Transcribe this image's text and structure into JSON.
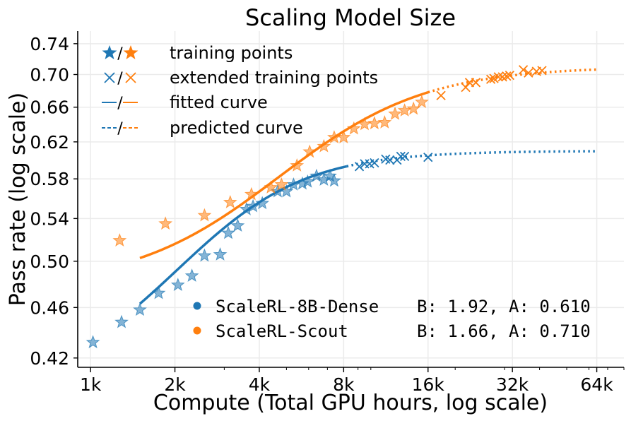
{
  "chart_data": {
    "type": "scatter",
    "title": "Scaling Model Size",
    "xlabel": "Compute (Total GPU hours, log scale)",
    "ylabel": "Pass rate (log scale)",
    "x_scale": "log",
    "y_scale": "log",
    "xlim": [
      900,
      80000
    ],
    "ylim": [
      0.413,
      0.757
    ],
    "xticks": [
      1000,
      2000,
      4000,
      8000,
      16000,
      32000,
      64000
    ],
    "xtick_labels": [
      "1k",
      "2k",
      "4k",
      "8k",
      "16k",
      "32k",
      "64k"
    ],
    "yticks": [
      0.42,
      0.46,
      0.5,
      0.54,
      0.58,
      0.62,
      0.66,
      0.7,
      0.74
    ],
    "ytick_labels": [
      "0.42",
      "0.46",
      "0.50",
      "0.54",
      "0.58",
      "0.62",
      "0.66",
      "0.70",
      "0.74"
    ],
    "grid": true,
    "legend_top": {
      "position": "top-left",
      "entries": [
        {
          "marker": "star",
          "label": "training points"
        },
        {
          "marker": "x",
          "label": "extended training points"
        },
        {
          "marker": "solid-line",
          "label": "fitted curve"
        },
        {
          "marker": "dashed-line",
          "label": "predicted curve"
        }
      ]
    },
    "legend_bottom": {
      "position": "bottom-right",
      "entries": [
        {
          "color": "#1f77b4",
          "name": "ScaleRL-8B-Dense",
          "params": "B: 1.92, A: 0.610"
        },
        {
          "color": "#ff7f0e",
          "name": "ScaleRL-Scout",
          "params": "B: 1.66, A: 0.710"
        }
      ]
    },
    "series": [
      {
        "name": "ScaleRL-8B-Dense",
        "color": "#1f77b4",
        "fit_B": 1.92,
        "fit_A": 0.61,
        "training_points": [
          [
            1020,
            0.432
          ],
          [
            1290,
            0.448
          ],
          [
            1500,
            0.458
          ],
          [
            1750,
            0.472
          ],
          [
            2050,
            0.479
          ],
          [
            2300,
            0.487
          ],
          [
            2550,
            0.505
          ],
          [
            2900,
            0.506
          ],
          [
            3100,
            0.526
          ],
          [
            3350,
            0.533
          ],
          [
            3600,
            0.549
          ],
          [
            3800,
            0.552
          ],
          [
            4100,
            0.555
          ],
          [
            4650,
            0.567
          ],
          [
            5000,
            0.567
          ],
          [
            5300,
            0.574
          ],
          [
            5700,
            0.575
          ],
          [
            5950,
            0.577
          ],
          [
            6400,
            0.583
          ],
          [
            6800,
            0.579
          ],
          [
            7150,
            0.583
          ],
          [
            7400,
            0.578
          ]
        ],
        "extended_points": [
          [
            9100,
            0.593
          ],
          [
            9500,
            0.596
          ],
          [
            9900,
            0.596
          ],
          [
            10300,
            0.597
          ],
          [
            11300,
            0.601
          ],
          [
            11700,
            0.6
          ],
          [
            12400,
            0.6
          ],
          [
            12800,
            0.604
          ],
          [
            13200,
            0.604
          ],
          [
            16000,
            0.603
          ]
        ],
        "fit_range": [
          1500,
          8200
        ],
        "predict_range": [
          8200,
          64000
        ]
      },
      {
        "name": "ScaleRL-Scout",
        "color": "#ff7f0e",
        "fit_B": 1.66,
        "fit_A": 0.71,
        "training_points": [
          [
            1270,
            0.519
          ],
          [
            1850,
            0.535
          ],
          [
            2550,
            0.543
          ],
          [
            3150,
            0.556
          ],
          [
            3750,
            0.564
          ],
          [
            4400,
            0.571
          ],
          [
            4800,
            0.574
          ],
          [
            5450,
            0.594
          ],
          [
            6050,
            0.609
          ],
          [
            6800,
            0.615
          ],
          [
            7400,
            0.625
          ],
          [
            8000,
            0.625
          ],
          [
            8700,
            0.635
          ],
          [
            9500,
            0.64
          ],
          [
            10300,
            0.641
          ],
          [
            11200,
            0.642
          ],
          [
            12200,
            0.652
          ],
          [
            13200,
            0.656
          ],
          [
            14200,
            0.658
          ],
          [
            15200,
            0.666
          ]
        ],
        "extended_points": [
          [
            17800,
            0.674
          ],
          [
            21800,
            0.684
          ],
          [
            22500,
            0.69
          ],
          [
            23700,
            0.69
          ],
          [
            26800,
            0.694
          ],
          [
            27500,
            0.695
          ],
          [
            28500,
            0.697
          ],
          [
            29500,
            0.697
          ],
          [
            30500,
            0.698
          ],
          [
            31300,
            0.699
          ],
          [
            35000,
            0.706
          ],
          [
            36500,
            0.702
          ],
          [
            39000,
            0.704
          ],
          [
            40800,
            0.705
          ]
        ],
        "fit_range": [
          1500,
          16000
        ],
        "predict_range": [
          16000,
          64000
        ]
      }
    ]
  }
}
